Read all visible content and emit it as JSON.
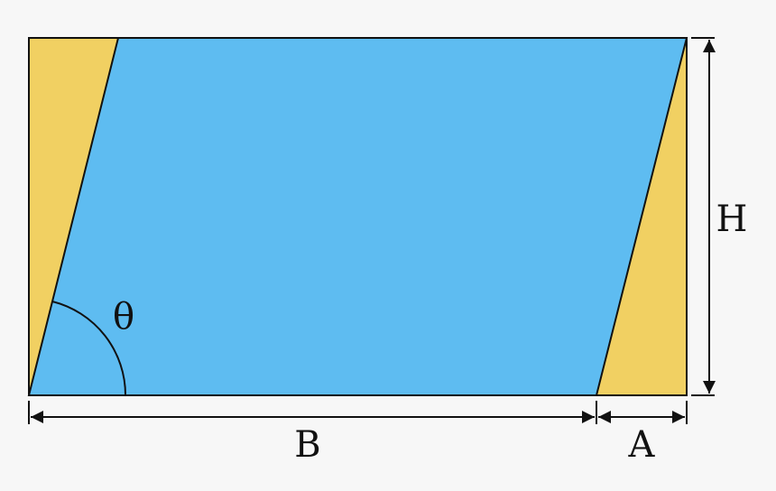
{
  "labels": {
    "angle": "θ",
    "height": "H",
    "base": "B",
    "offset": "A"
  },
  "colors": {
    "background": "#f7f7f7",
    "parallelogram": "#5ebcf1",
    "triangles": "#f1d062",
    "stroke": "#111111"
  }
}
